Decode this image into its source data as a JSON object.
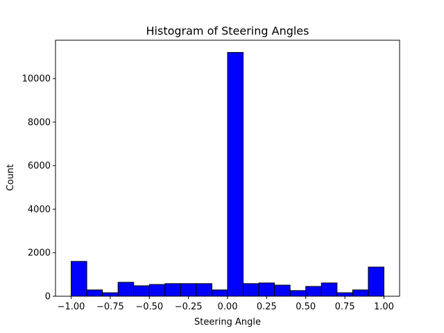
{
  "chart_data": {
    "type": "bar",
    "title": "Histogram of Steering Angles",
    "xlabel": "Steering Angle",
    "ylabel": "Count",
    "xlim": [
      -1.1,
      1.1
    ],
    "ylim": [
      0,
      11760
    ],
    "bin_edges": [
      -1.0,
      -0.9,
      -0.8,
      -0.7,
      -0.6,
      -0.5,
      -0.4,
      -0.3,
      -0.2,
      -0.1,
      0.0,
      0.1,
      0.2,
      0.3,
      0.4,
      0.5,
      0.6,
      0.7,
      0.8,
      0.9,
      1.0
    ],
    "values": [
      1600,
      290,
      160,
      640,
      480,
      540,
      580,
      580,
      580,
      290,
      11200,
      580,
      610,
      510,
      260,
      450,
      610,
      160,
      290,
      1340
    ],
    "xticks": [
      -1.0,
      -0.75,
      -0.5,
      -0.25,
      0.0,
      0.25,
      0.5,
      0.75,
      1.0
    ],
    "xtick_labels": [
      "−1.00",
      "−0.75",
      "−0.50",
      "−0.25",
      "0.00",
      "0.25",
      "0.50",
      "0.75",
      "1.00"
    ],
    "yticks": [
      0,
      2000,
      4000,
      6000,
      8000,
      10000
    ],
    "ytick_labels": [
      "0",
      "2000",
      "4000",
      "6000",
      "8000",
      "10000"
    ],
    "bar_color": "#0000ff",
    "edge_color": "#000000",
    "grid": false,
    "legend": "none"
  }
}
